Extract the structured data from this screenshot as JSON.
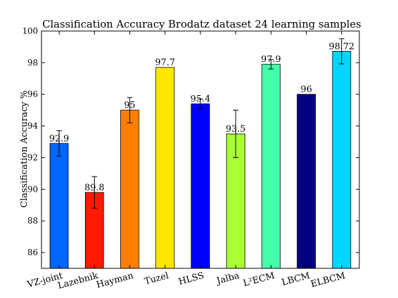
{
  "chart_data": {
    "type": "bar",
    "title": "Classification Accuracy Brodatz dataset 24 learning samples",
    "xlabel": "",
    "ylabel": "Classification Accuracy %",
    "ylim": [
      85,
      100
    ],
    "yticks": [
      86,
      88,
      90,
      92,
      94,
      96,
      98,
      100
    ],
    "grid": false,
    "legend": "none",
    "categories": [
      "VZ-joint",
      "Lazebnik",
      "Hayman",
      "Tuzel",
      "HLSS",
      "Jalba",
      "L²ECM",
      "LBCM",
      "ELBCM"
    ],
    "values": [
      92.9,
      89.8,
      95,
      97.7,
      95.4,
      93.5,
      97.9,
      96,
      98.72
    ],
    "value_labels": [
      "92.9",
      "89.8",
      "95",
      "97.7",
      "95.4",
      "93.5",
      "97.9",
      "96",
      "98.72"
    ],
    "errors": [
      0.8,
      1.0,
      0.8,
      0,
      0.3,
      1.5,
      0.3,
      0,
      0.8
    ],
    "colors": [
      "#0066ff",
      "#ff1a00",
      "#ff7f00",
      "#ffe600",
      "#0000ff",
      "#aaff33",
      "#44ffaa",
      "#000080",
      "#00d4ff"
    ]
  }
}
